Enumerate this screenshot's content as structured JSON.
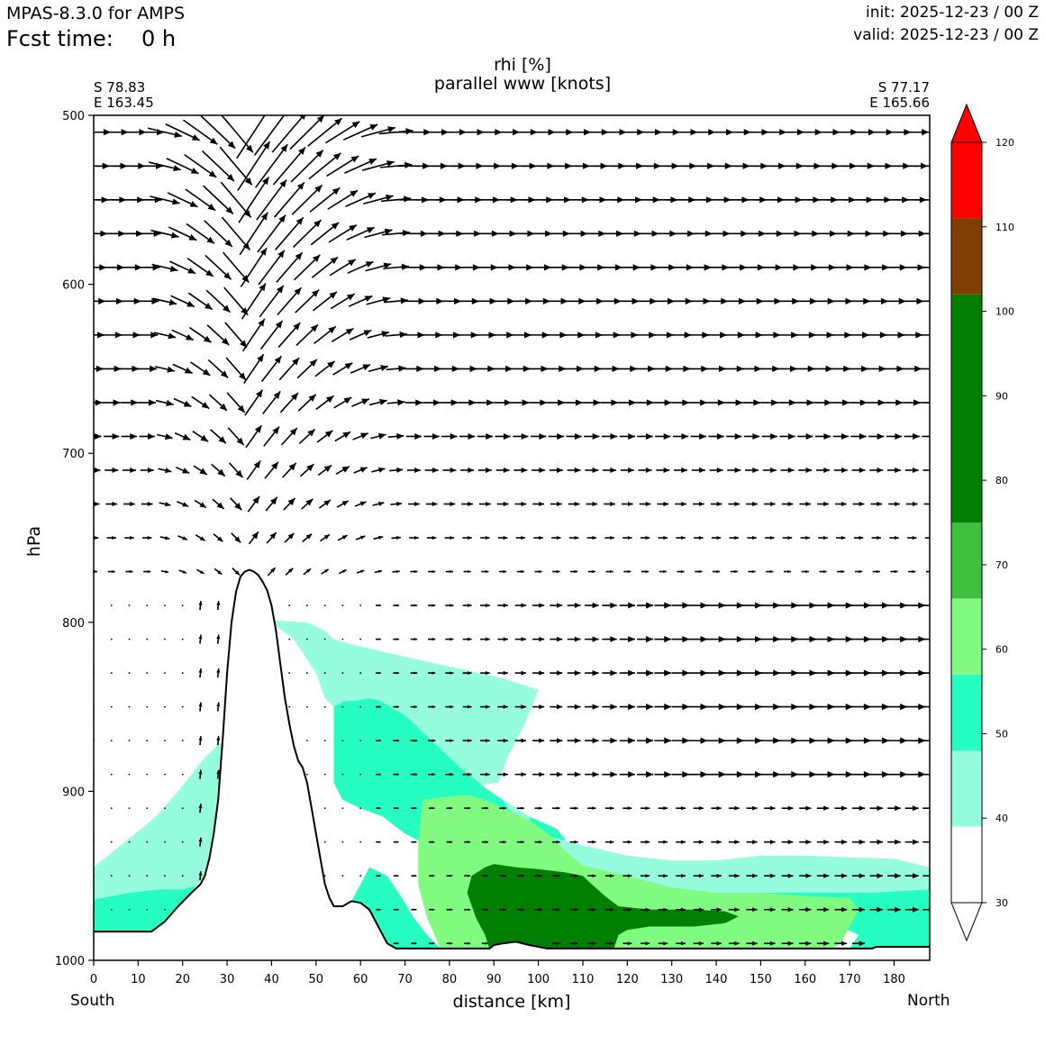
{
  "header": {
    "model": "MPAS-8.3.0 for AMPS",
    "fcst_label": "Fcst time:",
    "fcst_value": "0 h",
    "init": "init: 2025-12-23 / 00 Z",
    "valid": "valid: 2025-12-23 / 00 Z"
  },
  "plot": {
    "title_line1": "rhi [%]",
    "title_line2": "parallel www [knots]",
    "left_corner": {
      "lat": "S 78.83",
      "lon": "E 163.45"
    },
    "right_corner": {
      "lat": "S 77.17",
      "lon": "E 165.66"
    },
    "left_end_label": "South",
    "right_end_label": "North"
  },
  "chart_data": {
    "type": "contourf",
    "variable": "rhi [%]",
    "vector_field": "parallel www [knots]",
    "xlabel": "distance [km]",
    "ylabel": "hPa",
    "xlim": [
      0,
      188
    ],
    "ylim": [
      1000,
      500
    ],
    "xticks": [
      0,
      10,
      20,
      30,
      40,
      50,
      60,
      70,
      80,
      90,
      100,
      110,
      120,
      130,
      140,
      150,
      160,
      170,
      180
    ],
    "yticks": [
      500,
      600,
      700,
      800,
      900,
      1000
    ],
    "colorbar": {
      "levels": [
        30,
        40,
        50,
        60,
        70,
        80,
        90,
        100,
        110,
        120
      ],
      "bands": [
        {
          "from": 30,
          "to": 39,
          "color": "#ffffff"
        },
        {
          "from": 39,
          "to": 48,
          "color": "#95fddd"
        },
        {
          "from": 48,
          "to": 57,
          "color": "#25fdc1"
        },
        {
          "from": 57,
          "to": 66,
          "color": "#80fb80"
        },
        {
          "from": 66,
          "to": 75,
          "color": "#40c040"
        },
        {
          "from": 75,
          "to": 102,
          "color": "#007f00"
        },
        {
          "from": 102,
          "to": 111,
          "color": "#7f3f00"
        },
        {
          "from": 111,
          "to": 120,
          "color": "#ff0000"
        }
      ],
      "extend": "both"
    },
    "terrain": [
      [
        0,
        983
      ],
      [
        13,
        983
      ],
      [
        16,
        977
      ],
      [
        19,
        968
      ],
      [
        22,
        960
      ],
      [
        24,
        955
      ],
      [
        25,
        950
      ],
      [
        26,
        940
      ],
      [
        27,
        925
      ],
      [
        28,
        905
      ],
      [
        29,
        870
      ],
      [
        30,
        830
      ],
      [
        31,
        800
      ],
      [
        32,
        782
      ],
      [
        33,
        773
      ],
      [
        34,
        770
      ],
      [
        35,
        769
      ],
      [
        36,
        770
      ],
      [
        37,
        772
      ],
      [
        38,
        776
      ],
      [
        39,
        781
      ],
      [
        40,
        790
      ],
      [
        41,
        805
      ],
      [
        42,
        825
      ],
      [
        43,
        845
      ],
      [
        44,
        860
      ],
      [
        45,
        873
      ],
      [
        46,
        882
      ],
      [
        47,
        886
      ],
      [
        48,
        895
      ],
      [
        49,
        910
      ],
      [
        50,
        925
      ],
      [
        51,
        940
      ],
      [
        52,
        955
      ],
      [
        53,
        963
      ],
      [
        54,
        968
      ],
      [
        56,
        968
      ],
      [
        58,
        965
      ],
      [
        60,
        966
      ],
      [
        62,
        970
      ],
      [
        64,
        980
      ],
      [
        66,
        990
      ],
      [
        68,
        993
      ],
      [
        78,
        993
      ],
      [
        85,
        993
      ],
      [
        89,
        993
      ],
      [
        90,
        991
      ],
      [
        92,
        990
      ],
      [
        95,
        989
      ],
      [
        98,
        991
      ],
      [
        102,
        993
      ],
      [
        120,
        993
      ],
      [
        150,
        993
      ],
      [
        170,
        993
      ],
      [
        175,
        993
      ],
      [
        176,
        992
      ],
      [
        188,
        992
      ]
    ],
    "rhi_regions": [
      {
        "band": "40-50",
        "color": "#95fddd",
        "points": [
          [
            0,
            945
          ],
          [
            7,
            930
          ],
          [
            14,
            915
          ],
          [
            19,
            900
          ],
          [
            22,
            890
          ],
          [
            25,
            880
          ],
          [
            29,
            870
          ],
          [
            29,
            905
          ],
          [
            27,
            930
          ],
          [
            25,
            950
          ],
          [
            23,
            956
          ],
          [
            20,
            958
          ],
          [
            15,
            958
          ],
          [
            8,
            960
          ],
          [
            0,
            964
          ]
        ]
      },
      {
        "band": "50-60",
        "color": "#25fdc1",
        "points": [
          [
            0,
            964
          ],
          [
            8,
            960
          ],
          [
            15,
            958
          ],
          [
            20,
            958
          ],
          [
            23,
            956
          ],
          [
            22,
            960
          ],
          [
            19,
            968
          ],
          [
            16,
            977
          ],
          [
            13,
            983
          ],
          [
            0,
            983
          ]
        ]
      },
      {
        "band": "40-50",
        "color": "#95fddd",
        "points": [
          [
            41,
            799
          ],
          [
            48,
            800
          ],
          [
            52,
            805
          ],
          [
            54,
            810
          ],
          [
            58,
            813
          ],
          [
            66,
            818
          ],
          [
            78,
            825
          ],
          [
            92,
            833
          ],
          [
            100,
            840
          ],
          [
            97,
            860
          ],
          [
            93,
            880
          ],
          [
            91,
            895
          ],
          [
            80,
            898
          ],
          [
            70,
            900
          ],
          [
            65,
            905
          ],
          [
            60,
            910
          ],
          [
            56,
            905
          ],
          [
            54,
            895
          ],
          [
            54,
            880
          ],
          [
            54,
            862
          ],
          [
            54,
            850
          ],
          [
            52,
            845
          ],
          [
            50,
            830
          ],
          [
            45,
            810
          ],
          [
            40,
            800
          ]
        ]
      },
      {
        "band": "50-60",
        "color": "#25fdc1",
        "points": [
          [
            54,
            850
          ],
          [
            56,
            847
          ],
          [
            60,
            846
          ],
          [
            62,
            845
          ],
          [
            64,
            846
          ],
          [
            70,
            855
          ],
          [
            76,
            870
          ],
          [
            82,
            885
          ],
          [
            88,
            898
          ],
          [
            92,
            905
          ],
          [
            98,
            915
          ],
          [
            104,
            922
          ],
          [
            106,
            928
          ],
          [
            105,
            935
          ],
          [
            98,
            940
          ],
          [
            90,
            938
          ],
          [
            82,
            935
          ],
          [
            75,
            932
          ],
          [
            70,
            925
          ],
          [
            65,
            915
          ],
          [
            60,
            910
          ],
          [
            56,
            905
          ],
          [
            54,
            895
          ],
          [
            54,
            880
          ],
          [
            54,
            862
          ]
        ]
      },
      {
        "band": "40-50",
        "color": "#95fddd",
        "points": [
          [
            92,
            905
          ],
          [
            95,
            918
          ],
          [
            100,
            925
          ],
          [
            110,
            932
          ],
          [
            120,
            938
          ],
          [
            130,
            941
          ],
          [
            140,
            941
          ],
          [
            150,
            938
          ],
          [
            160,
            938
          ],
          [
            170,
            939
          ],
          [
            180,
            940
          ],
          [
            188,
            945
          ],
          [
            188,
            958
          ],
          [
            175,
            960
          ],
          [
            160,
            960
          ],
          [
            150,
            960
          ],
          [
            140,
            960
          ],
          [
            130,
            957
          ],
          [
            120,
            950
          ],
          [
            110,
            944
          ],
          [
            104,
            940
          ],
          [
            100,
            932
          ],
          [
            98,
            915
          ]
        ]
      },
      {
        "band": "50-60",
        "color": "#25fdc1",
        "points": [
          [
            98,
            915
          ],
          [
            100,
            932
          ],
          [
            104,
            940
          ],
          [
            110,
            944
          ],
          [
            120,
            950
          ],
          [
            130,
            957
          ],
          [
            140,
            960
          ],
          [
            150,
            960
          ],
          [
            160,
            960
          ],
          [
            175,
            960
          ],
          [
            188,
            958
          ],
          [
            188,
            992
          ],
          [
            176,
            992
          ],
          [
            175,
            993
          ],
          [
            170,
            993
          ],
          [
            172,
            985
          ],
          [
            168,
            980
          ],
          [
            160,
            975
          ],
          [
            140,
            972
          ],
          [
            120,
            970
          ],
          [
            110,
            962
          ],
          [
            106,
            945
          ]
        ]
      },
      {
        "band": "50-60",
        "color": "#25fdc1",
        "points": [
          [
            58,
            965
          ],
          [
            60,
            966
          ],
          [
            62,
            970
          ],
          [
            64,
            980
          ],
          [
            66,
            990
          ],
          [
            68,
            993
          ],
          [
            78,
            993
          ],
          [
            75,
            985
          ],
          [
            72,
            975
          ],
          [
            70,
            966
          ],
          [
            66,
            950
          ],
          [
            62,
            945
          ],
          [
            60,
            955
          ]
        ]
      },
      {
        "band": "60-70",
        "color": "#80fb80",
        "points": [
          [
            74,
            905
          ],
          [
            80,
            903
          ],
          [
            84,
            902
          ],
          [
            88,
            905
          ],
          [
            92,
            910
          ],
          [
            98,
            917
          ],
          [
            103,
            927
          ],
          [
            106,
            935
          ],
          [
            110,
            944
          ],
          [
            120,
            950
          ],
          [
            130,
            957
          ],
          [
            140,
            960
          ],
          [
            150,
            960
          ],
          [
            160,
            962
          ],
          [
            170,
            963
          ],
          [
            172,
            970
          ],
          [
            170,
            980
          ],
          [
            168,
            990
          ],
          [
            166,
            993
          ],
          [
            125,
            993
          ],
          [
            120,
            993
          ],
          [
            115,
            993
          ],
          [
            90,
            993
          ],
          [
            85,
            993
          ],
          [
            78,
            993
          ],
          [
            75,
            975
          ],
          [
            73,
            955
          ],
          [
            73,
            930
          ]
        ]
      },
      {
        "band": "80-100",
        "color": "#007f00",
        "points": [
          [
            85,
            950
          ],
          [
            88,
            945
          ],
          [
            90,
            943
          ],
          [
            95,
            945
          ],
          [
            100,
            946
          ],
          [
            106,
            948
          ],
          [
            110,
            950
          ],
          [
            112,
            955
          ],
          [
            115,
            962
          ],
          [
            118,
            968
          ],
          [
            125,
            970
          ],
          [
            135,
            970
          ],
          [
            142,
            971
          ],
          [
            145,
            974
          ],
          [
            142,
            978
          ],
          [
            135,
            980
          ],
          [
            125,
            980
          ],
          [
            120,
            982
          ],
          [
            118,
            985
          ],
          [
            117,
            993
          ],
          [
            102,
            993
          ],
          [
            98,
            991
          ],
          [
            95,
            989
          ],
          [
            92,
            990
          ],
          [
            90,
            991
          ],
          [
            89,
            993
          ],
          [
            88,
            985
          ],
          [
            86,
            975
          ],
          [
            84,
            960
          ]
        ]
      }
    ],
    "vector_levels": [
      510,
      530,
      550,
      570,
      590,
      610,
      630,
      650,
      670,
      690,
      710,
      730,
      750,
      770,
      790,
      810,
      830,
      850,
      870,
      890,
      910,
      930,
      950,
      970,
      990
    ],
    "vector_x": [
      0,
      4,
      8,
      12,
      16,
      20,
      24,
      28,
      32,
      36,
      40,
      44,
      48,
      52,
      56,
      60,
      64,
      68,
      72,
      76,
      80,
      84,
      88,
      92,
      96,
      100,
      104,
      108,
      112,
      116,
      120,
      124,
      128,
      132,
      136,
      140,
      144,
      148,
      152,
      156,
      160,
      164,
      168,
      172,
      176,
      180,
      184,
      188
    ]
  }
}
